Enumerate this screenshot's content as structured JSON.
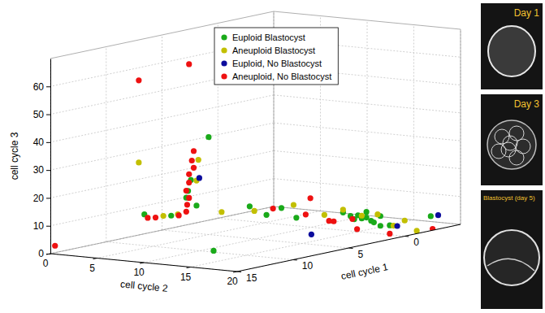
{
  "chart_data": {
    "type": "scatter3d",
    "x_label": "cell cycle 1",
    "y_label": "cell cycle 2",
    "z_label": "cell cycle 3",
    "xlim": [
      -5,
      15
    ],
    "xticks": [
      0,
      5,
      10,
      15
    ],
    "ylim": [
      0,
      20
    ],
    "yticks": [
      0,
      5,
      10,
      15,
      20
    ],
    "zlim": [
      0,
      70
    ],
    "zticks": [
      0,
      10,
      20,
      30,
      40,
      50,
      60
    ],
    "grid": true,
    "legend": "top",
    "series": [
      {
        "name": "Euploid Blastocyst",
        "color": "#1aaa1a",
        "x": [
          3,
          3,
          3,
          3,
          3,
          7,
          4.6,
          10,
          0.5,
          0.5,
          0.5,
          0.5,
          0.5,
          0.5,
          0.5,
          0.5,
          0.5,
          0.5,
          0.5,
          0.5,
          0.5,
          0.5,
          0.5,
          -2.5,
          0.5
        ],
        "y": [
          2.6,
          0.7,
          0.4,
          0.2,
          1.3,
          0.5,
          0.5,
          11.5,
          4,
          5.8,
          7.4,
          9,
          14,
          14.8,
          15.2,
          15.6,
          16,
          16.5,
          17,
          17.3,
          18,
          18,
          19,
          19.8,
          16.5
        ],
        "z": [
          32.5,
          16.5,
          12.5,
          10,
          7.5,
          7.5,
          5,
          0.5,
          6,
          3.5,
          6.5,
          3.5,
          7,
          6,
          5,
          6.5,
          5.5,
          6,
          5,
          4.5,
          7,
          3.5,
          4,
          5,
          8
        ]
      },
      {
        "name": "Aneuploid Blastocyst",
        "color": "#c2bf00",
        "x": [
          7.5,
          3,
          3,
          5.3,
          4,
          0.5,
          0.5,
          0.5,
          0.5,
          0.5,
          -0.5,
          0.5,
          -1.5,
          0.5,
          0.5
        ],
        "y": [
          0.5,
          1.5,
          1.3,
          0.5,
          0.5,
          1,
          4.5,
          8.7,
          14,
          17.7,
          19.4,
          19.4,
          19.5,
          16,
          12
        ],
        "z": [
          26.5,
          24,
          16.5,
          5.5,
          5,
          3,
          4.5,
          8,
          8,
          7.5,
          5,
          4,
          0.5,
          6.5,
          5.5
        ]
      },
      {
        "name": "Euploid, No Blastocyst",
        "color": "#0c0c9c",
        "x": [
          3,
          2.5,
          -3,
          0.5
        ],
        "y": [
          1.6,
          13,
          20,
          19.8
        ],
        "z": [
          17.5,
          0.5,
          5,
          4
        ]
      },
      {
        "name": "Aneuploid, No Blastocyst",
        "color": "#ee1111",
        "x": [
          3,
          7.5,
          3,
          3,
          3,
          3,
          3,
          3,
          3,
          3,
          3,
          6,
          6.7,
          15,
          3.5,
          0.5,
          0.5,
          0.5,
          0.5,
          0.5,
          -2.5,
          0.5,
          0.5,
          0.5
        ],
        "y": [
          0.5,
          0.5,
          1,
          0.8,
          1,
          0.5,
          0.5,
          0.2,
          0.5,
          0.3,
          0.2,
          0.5,
          0.5,
          0.5,
          0,
          10.5,
          10,
          13,
          15.5,
          19,
          20,
          6.5,
          15,
          12.5
        ],
        "z": [
          58,
          56,
          27,
          23.5,
          21,
          18.5,
          15.5,
          12.5,
          10,
          7.5,
          5,
          5.5,
          6,
          3,
          4,
          11,
          5,
          3.5,
          1.5,
          1,
          0.5,
          6,
          5,
          3.5
        ]
      }
    ],
    "annotations": [
      "Day 1",
      "Day 3",
      "Blastocyst (day 5)"
    ]
  }
}
